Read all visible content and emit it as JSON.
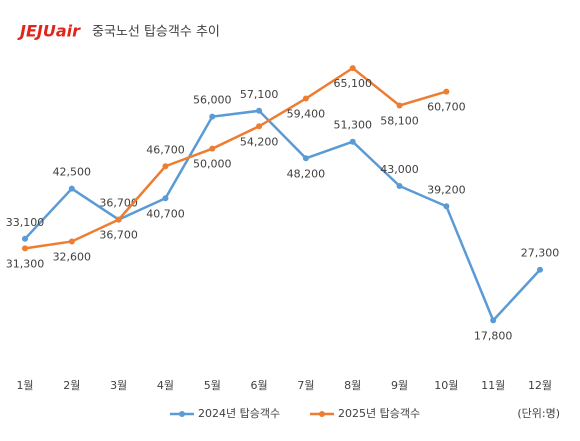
{
  "chart_data": {
    "type": "line",
    "logo": "JEJUair",
    "title": "중국노선 탑승객수 추이",
    "unit_note": "(단위:명)",
    "categories": [
      "1월",
      "2월",
      "3월",
      "4월",
      "5월",
      "6월",
      "7월",
      "8월",
      "9월",
      "10월",
      "11월",
      "12월"
    ],
    "series": [
      {
        "name": "2024년 탑승객수",
        "color": "#5b9bd5",
        "values": [
          33100,
          42500,
          36700,
          40700,
          56000,
          57100,
          48200,
          51300,
          43000,
          39200,
          17800,
          27300
        ],
        "value_labels": [
          "33,100",
          "42,500",
          "36,700",
          "40,700",
          "56,000",
          "57,100",
          "48,200",
          "51,300",
          "43,000",
          "39,200",
          "17,800",
          "27,300"
        ]
      },
      {
        "name": "2025년 탑승객수",
        "color": "#ed7d31",
        "values": [
          31300,
          32600,
          36700,
          46700,
          50000,
          54200,
          59400,
          65100,
          58100,
          60700,
          null,
          null
        ],
        "value_labels": [
          "31,300",
          "32,600",
          "36,700",
          "46,700",
          "50,000",
          "54,200",
          "59,400",
          "65,100",
          "58,100",
          "60,700",
          null,
          null
        ]
      }
    ],
    "ylim": [
      10000,
      70000
    ],
    "grid": false
  }
}
